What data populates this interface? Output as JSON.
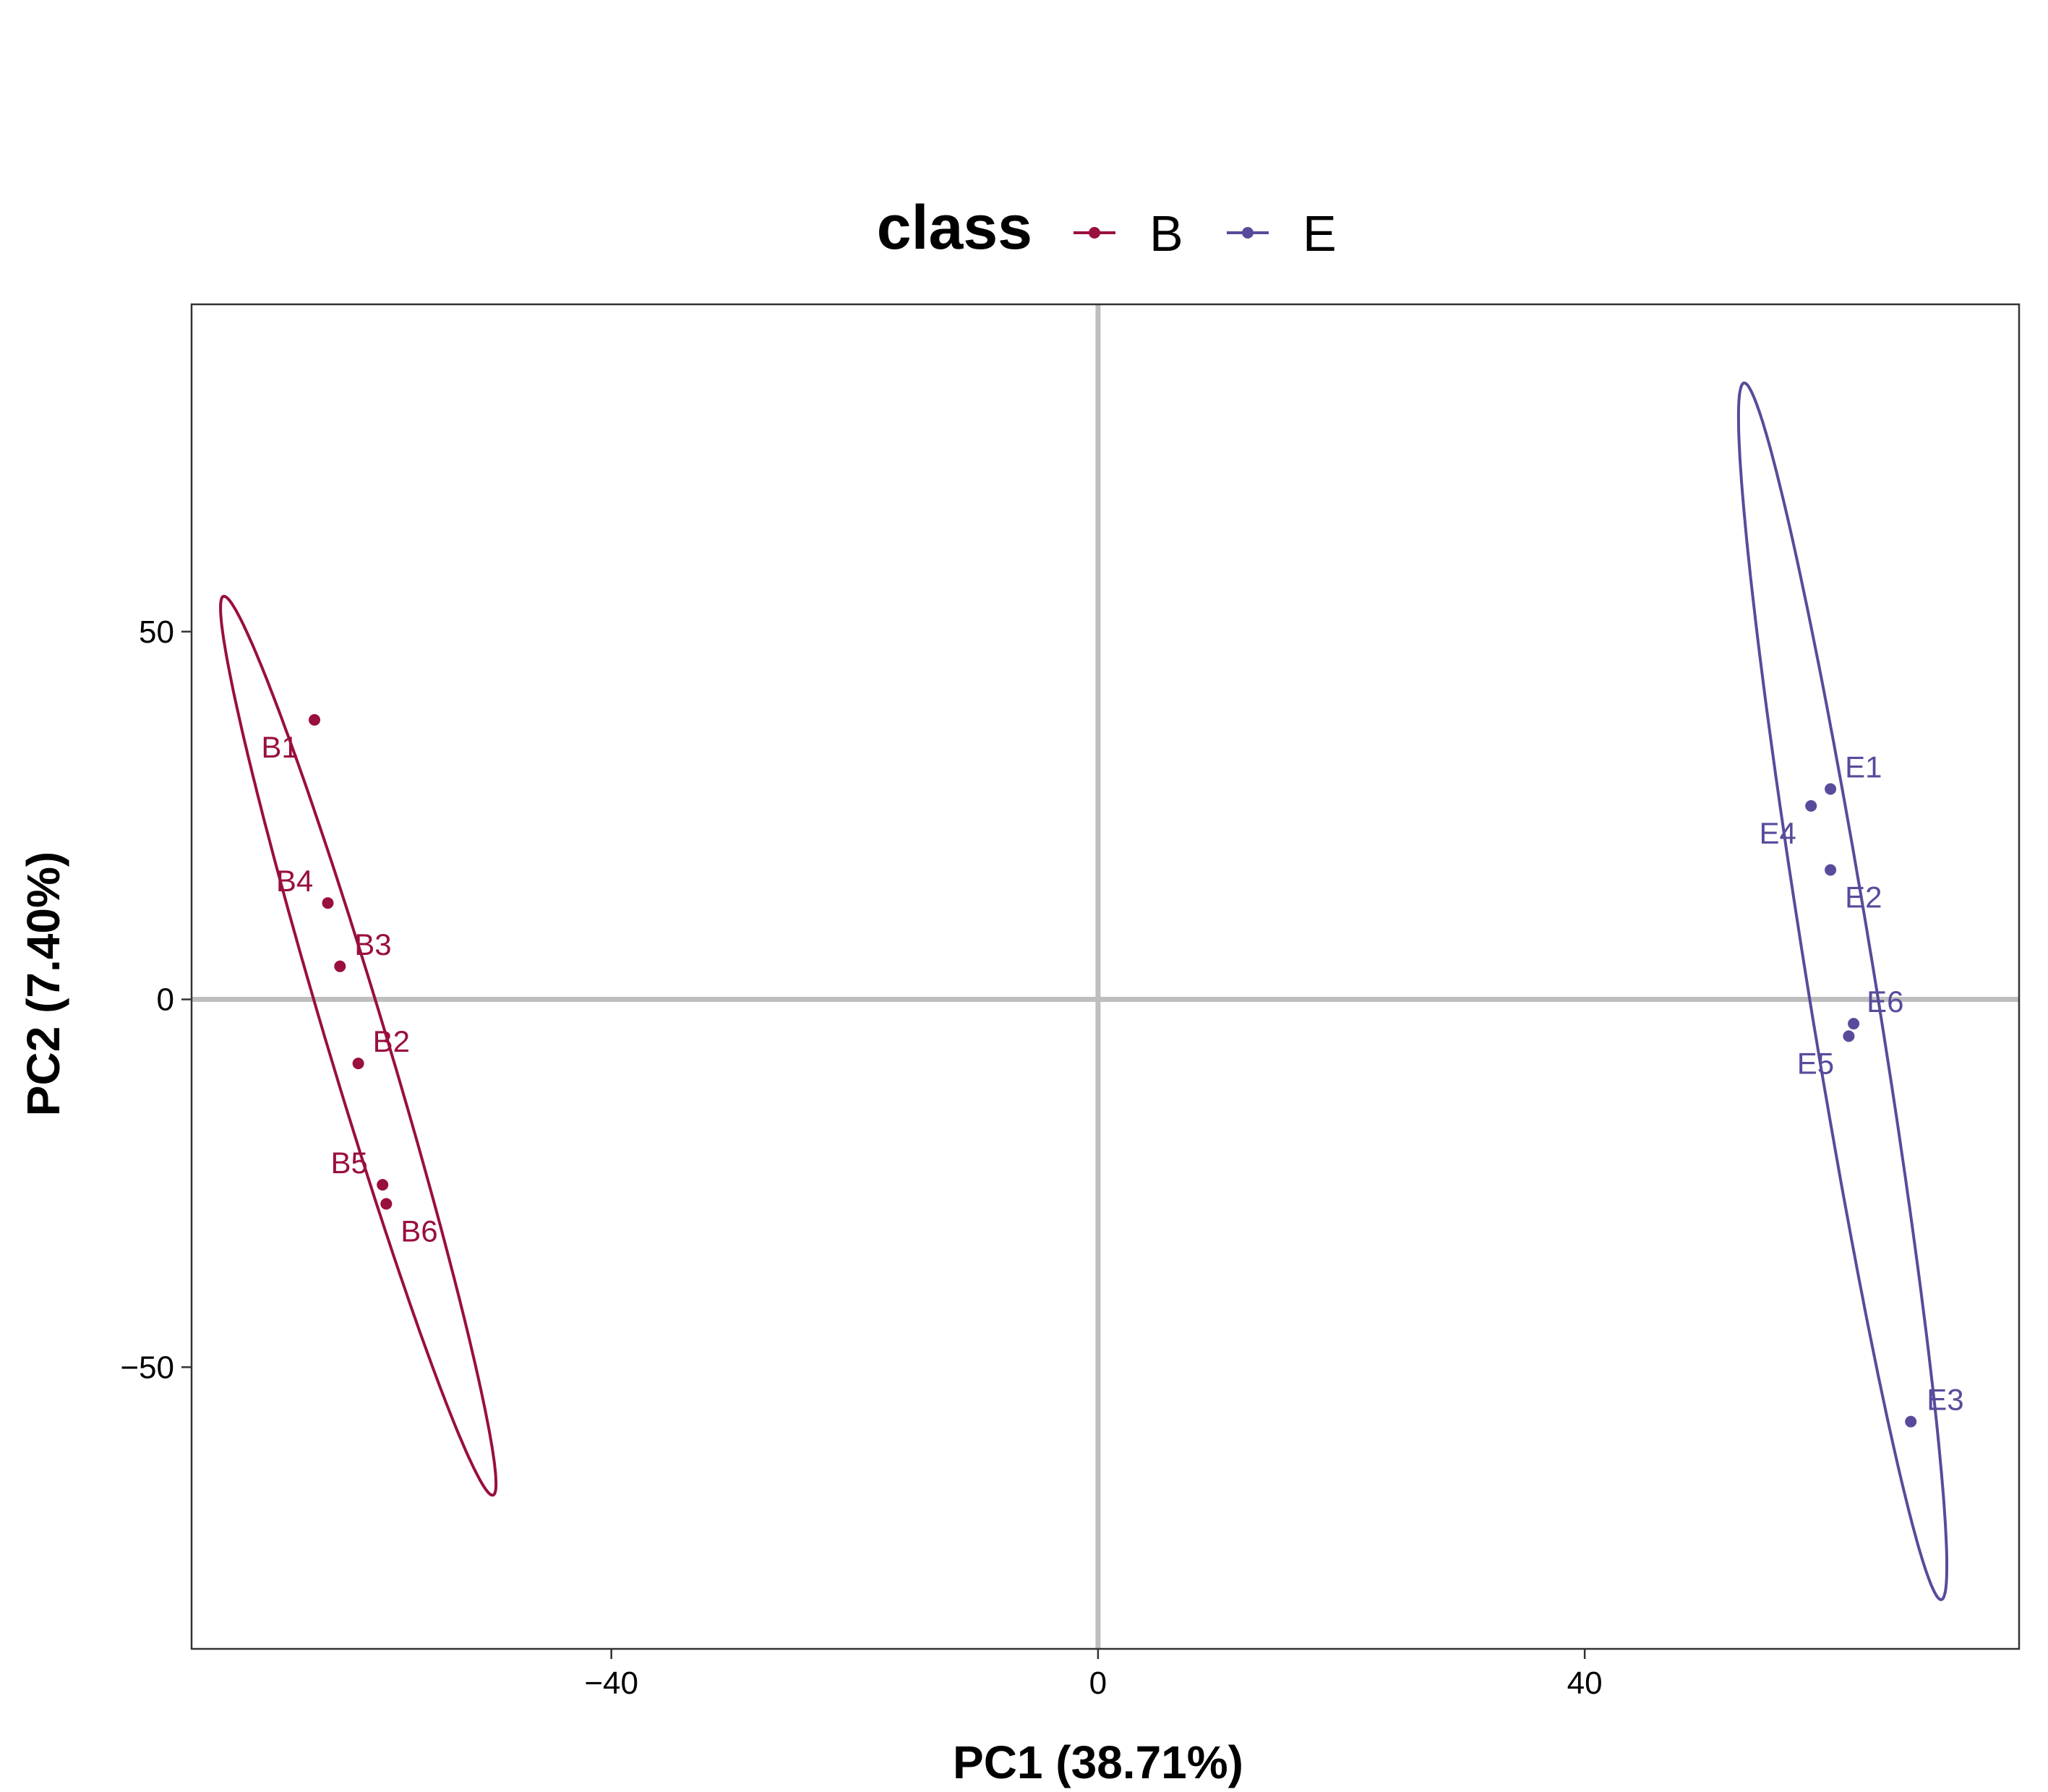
{
  "chart_data": {
    "type": "scatter",
    "title": "",
    "xlabel": "PC1 (38.71%)",
    "ylabel": "PC2 (7.40%)",
    "xlim": [
      -74.5,
      75.7
    ],
    "ylim": [
      -88.3,
      94.5
    ],
    "x_ticks": [
      -40,
      0,
      40
    ],
    "y_ticks": [
      -50,
      0,
      50
    ],
    "x_tick_labels": [
      "−40",
      "0",
      "40"
    ],
    "y_tick_labels": [
      "−50",
      "0",
      "50"
    ],
    "reference_lines": {
      "x": 0,
      "y": 0,
      "color": "#bebebe"
    },
    "grid": false,
    "legend": {
      "title": "class",
      "position": "top",
      "entries": [
        "B",
        "E"
      ]
    },
    "series": [
      {
        "name": "B",
        "color": "#990f3d",
        "points": [
          {
            "label": "B1",
            "x": -64.4,
            "y": 38.0
          },
          {
            "label": "B2",
            "x": -60.8,
            "y": -8.7
          },
          {
            "label": "B3",
            "x": -62.3,
            "y": 4.5
          },
          {
            "label": "B4",
            "x": -63.3,
            "y": 13.1
          },
          {
            "label": "B5",
            "x": -58.8,
            "y": -25.2
          },
          {
            "label": "B6",
            "x": -58.5,
            "y": -27.8
          }
        ],
        "ellipse": {
          "cx": -60.8,
          "cy": -6.3,
          "rx": 62.1,
          "ry": 2.5,
          "angle_deg": -79.75
        }
      },
      {
        "name": "E",
        "color": "#5a4a9b",
        "points": [
          {
            "label": "E1",
            "x": 60.2,
            "y": 28.6
          },
          {
            "label": "E2",
            "x": 60.2,
            "y": 17.6
          },
          {
            "label": "E3",
            "x": 66.8,
            "y": -57.4
          },
          {
            "label": "E4",
            "x": 58.6,
            "y": 26.3
          },
          {
            "label": "E5",
            "x": 61.7,
            "y": -5.0
          },
          {
            "label": "E6",
            "x": 62.1,
            "y": -3.3
          }
        ],
        "ellipse": {
          "cx": 61.2,
          "cy": 1.1,
          "rx": 83.1,
          "ry": 2.8,
          "angle_deg": -84.41
        }
      }
    ]
  }
}
